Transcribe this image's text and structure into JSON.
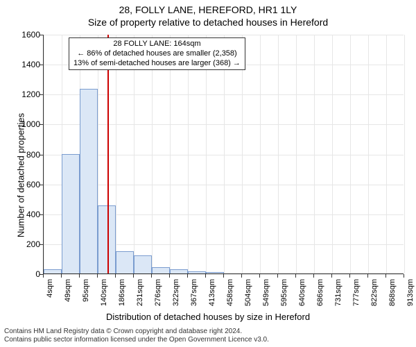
{
  "title": "28, FOLLY LANE, HEREFORD, HR1 1LY",
  "subtitle": "Size of property relative to detached houses in Hereford",
  "ylabel": "Number of detached properties",
  "xlabel": "Distribution of detached houses by size in Hereford",
  "chart": {
    "type": "histogram",
    "background_color": "#ffffff",
    "grid_color": "#e6e6e6",
    "axis_color": "#333333",
    "bar_fill": "#dbe7f6",
    "bar_border": "#7a9ccf",
    "ylim": [
      0,
      1600
    ],
    "yticks": [
      0,
      200,
      400,
      600,
      800,
      1000,
      1200,
      1400,
      1600
    ],
    "xticks_labels": [
      "4sqm",
      "49sqm",
      "95sqm",
      "140sqm",
      "186sqm",
      "231sqm",
      "276sqm",
      "322sqm",
      "367sqm",
      "413sqm",
      "458sqm",
      "504sqm",
      "549sqm",
      "595sqm",
      "640sqm",
      "686sqm",
      "731sqm",
      "777sqm",
      "822sqm",
      "868sqm",
      "913sqm"
    ],
    "bar_values": [
      30,
      800,
      1235,
      455,
      150,
      120,
      40,
      30,
      15,
      10,
      0,
      0,
      0,
      0,
      0,
      0,
      0,
      0,
      0,
      0
    ],
    "bin_count": 20,
    "bar_width_ratio": 1.0,
    "marker": {
      "value_sqm": 164,
      "x_domain_min": 4,
      "x_domain_max": 913,
      "color": "#cc0000"
    }
  },
  "callout": {
    "line1": "28 FOLLY LANE: 164sqm",
    "line2": "← 86% of detached houses are smaller (2,358)",
    "line3": "13% of semi-detached houses are larger (368) →"
  },
  "attribution": {
    "line1": "Contains HM Land Registry data © Crown copyright and database right 2024.",
    "line2": "Contains public sector information licensed under the Open Government Licence v3.0."
  },
  "fonts": {
    "title_size_pt": 14,
    "label_size_pt": 13,
    "tick_size_pt": 12,
    "callout_size_pt": 11,
    "attribution_size_pt": 10
  }
}
